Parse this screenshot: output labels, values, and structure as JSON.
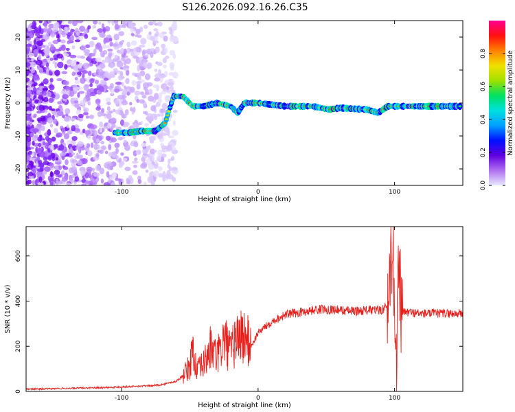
{
  "title": "S126.2026.092.16.26.C35",
  "chart_data": [
    {
      "type": "heatmap",
      "title": "S126.2026.092.16.26.C35",
      "xlabel": "Height of straight line (km)",
      "ylabel": "Frequency (Hz)",
      "xlim": [
        -170,
        150
      ],
      "ylim": [
        -25,
        25
      ],
      "xticks": [
        -100,
        0,
        100
      ],
      "yticks": [
        -20,
        -10,
        0,
        10,
        20
      ],
      "colorbar": {
        "label": "Normalized spectral amplitude",
        "range": [
          0,
          1
        ],
        "ticks": [
          0.0,
          0.2,
          0.4,
          0.6,
          0.8
        ],
        "tick_labels": [
          "0.0",
          "0.2",
          "0.4",
          "0.6",
          "0.8"
        ],
        "colormap": [
          "#e8e8ff",
          "#b070f0",
          "#6000e0",
          "#0010ff",
          "#00a0ff",
          "#00e0e0",
          "#00e060",
          "#a0e000",
          "#f0e000",
          "#ff8000",
          "#ff1010",
          "#ff0090"
        ]
      },
      "ridge": {
        "description": "dominant frequency track vs height",
        "x": [
          -105,
          -95,
          -85,
          -75,
          -68,
          -62,
          -55,
          -48,
          -40,
          -30,
          -20,
          -15,
          -10,
          0,
          20,
          40,
          52,
          60,
          80,
          88,
          95,
          100,
          110,
          130,
          148
        ],
        "y": [
          -9,
          -9,
          -8.5,
          -8.5,
          -6,
          2,
          2,
          -1,
          -1,
          0,
          -1,
          -3,
          0,
          0,
          -1,
          -1,
          -2,
          -1.5,
          -2,
          -3,
          -1,
          -1,
          -1,
          -1,
          -1
        ]
      }
    },
    {
      "type": "line",
      "xlabel": "Height of straight line (km)",
      "ylabel": "SNR (10 * v/v)",
      "xlim": [
        -170,
        150
      ],
      "ylim": [
        0,
        730
      ],
      "xticks": [
        -100,
        0,
        100
      ],
      "yticks": [
        0,
        200,
        400,
        600
      ],
      "color": "#e8201c",
      "series": [
        {
          "name": "SNR",
          "x": [
            -170,
            -150,
            -130,
            -110,
            -90,
            -80,
            -70,
            -60,
            -55,
            -50,
            -48,
            -45,
            -40,
            -35,
            -30,
            -25,
            -20,
            -15,
            -10,
            -5,
            0,
            10,
            20,
            30,
            40,
            50,
            60,
            70,
            80,
            90,
            95,
            97,
            99,
            101,
            103,
            105,
            110,
            120,
            130,
            150
          ],
          "y": [
            10,
            12,
            15,
            18,
            22,
            25,
            30,
            45,
            70,
            110,
            200,
            90,
            120,
            190,
            150,
            230,
            170,
            250,
            240,
            200,
            260,
            310,
            340,
            350,
            360,
            365,
            360,
            355,
            360,
            360,
            380,
            560,
            720,
            30,
            520,
            350,
            350,
            345,
            345,
            345
          ]
        }
      ]
    }
  ]
}
